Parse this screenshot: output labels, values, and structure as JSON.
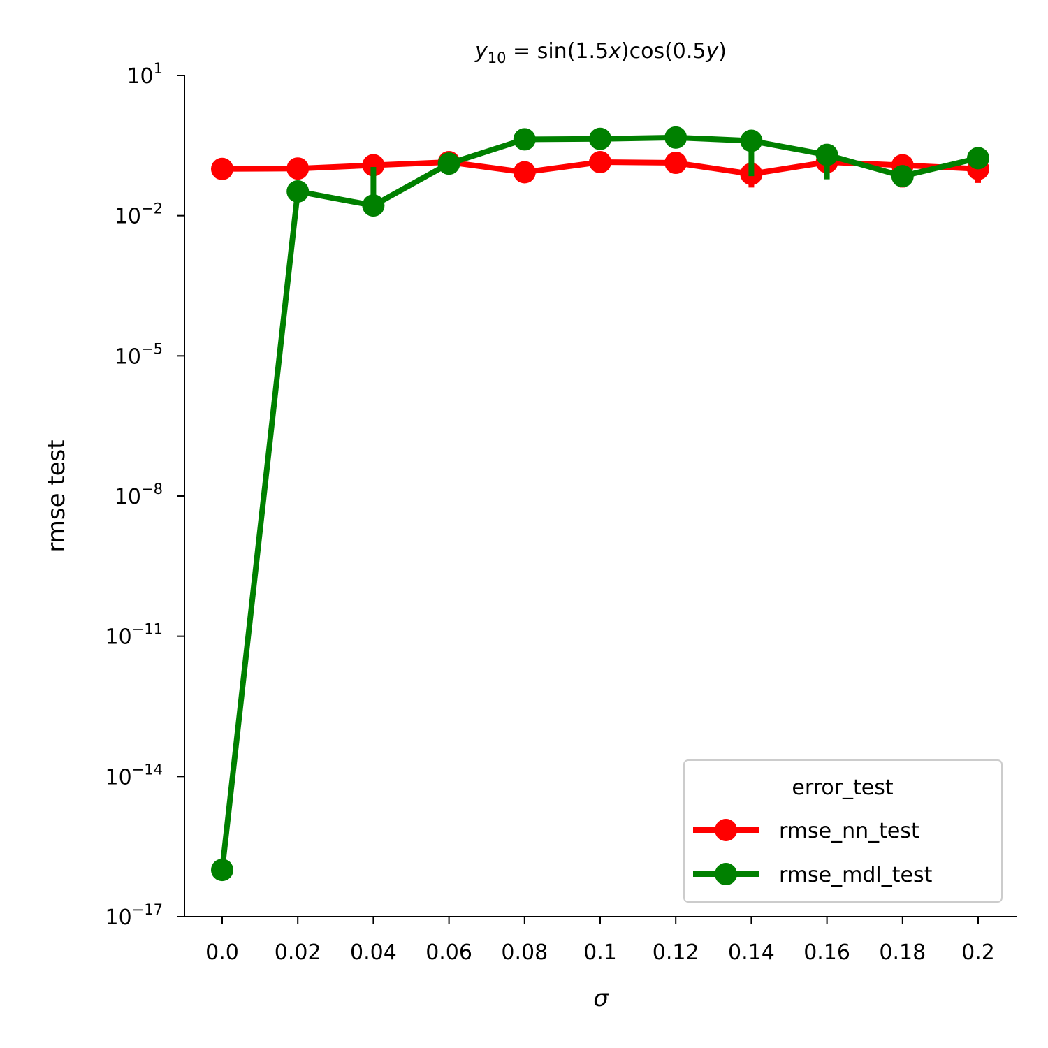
{
  "chart_data": {
    "type": "line",
    "title": {
      "lhs_var": "y",
      "lhs_sub": "10",
      "eq": " = ",
      "f1": "sin(1.5",
      "v1": "x",
      "mid": ")cos(0.5",
      "v2": "y",
      "end": ")"
    },
    "xlabel": "σ",
    "ylabel": "rmse test",
    "categories": [
      "0.0",
      "0.02",
      "0.04",
      "0.06",
      "0.08",
      "0.1",
      "0.12",
      "0.14",
      "0.16",
      "0.18",
      "0.2"
    ],
    "y_scale": "log",
    "ylim": [
      1e-17,
      10
    ],
    "y_ticks": [
      {
        "value": 10,
        "base": "10",
        "exp": "1"
      },
      {
        "value": 0.01,
        "base": "10",
        "exp": "−2"
      },
      {
        "value": 1e-05,
        "base": "10",
        "exp": "−5"
      },
      {
        "value": 1e-08,
        "base": "10",
        "exp": "−8"
      },
      {
        "value": 1e-11,
        "base": "10",
        "exp": "−11"
      },
      {
        "value": 1e-14,
        "base": "10",
        "exp": "−14"
      },
      {
        "value": 1e-17,
        "base": "10",
        "exp": "−17"
      }
    ],
    "series": [
      {
        "name": "rmse_nn_test",
        "color": "#ff0000",
        "values": [
          0.1,
          0.102,
          0.12,
          0.14,
          0.085,
          0.14,
          0.135,
          0.078,
          0.14,
          0.12,
          0.1
        ],
        "error_low": [
          null,
          null,
          null,
          null,
          null,
          null,
          null,
          0.04,
          null,
          0.04,
          0.05
        ],
        "error_high": [
          null,
          null,
          null,
          null,
          null,
          null,
          null,
          0.14,
          null,
          0.15,
          0.28
        ]
      },
      {
        "name": "rmse_mdl_test",
        "color": "#008000",
        "values": [
          1e-16,
          0.033,
          0.0165,
          0.13,
          0.43,
          0.44,
          0.47,
          0.4,
          0.2,
          0.07,
          0.17
        ],
        "error_low": [
          null,
          null,
          0.0145,
          null,
          null,
          null,
          null,
          0.07,
          0.06,
          null,
          null
        ],
        "error_high": [
          null,
          null,
          0.11,
          null,
          null,
          null,
          null,
          0.38,
          0.22,
          null,
          null
        ]
      }
    ],
    "legend": {
      "title": "error_test",
      "position": "lower-right"
    },
    "grid": false
  }
}
